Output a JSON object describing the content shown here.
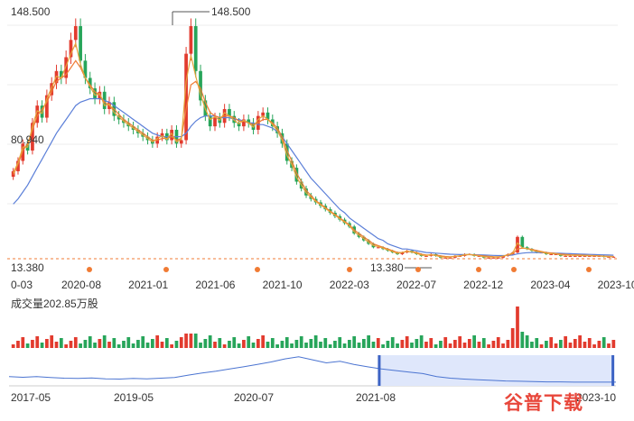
{
  "chart_data": {
    "type": "candlestick",
    "price_axis": {
      "max_label": "148.500",
      "min_label": "13.380",
      "mid_label": "80.940"
    },
    "annotations": {
      "high": "148.500",
      "low": "13.380"
    },
    "x_tick_labels": [
      "0-03",
      "2020-08",
      "2021-01",
      "2021-06",
      "2021-10",
      "2022-03",
      "2022-07",
      "2022-12",
      "2023-04",
      "2023-10"
    ],
    "volume_label": "成交量202.85万股",
    "navigator_tick_labels": [
      "2017-05",
      "2019-05",
      "2020-07",
      "2021-08",
      "2023-10"
    ],
    "price_close": [
      64,
      70,
      80,
      76,
      92,
      102,
      95,
      108,
      115,
      122,
      118,
      130,
      140,
      148,
      128,
      118,
      112,
      106,
      110,
      100,
      104,
      96,
      94,
      92,
      90,
      88,
      86,
      84,
      82,
      80,
      84,
      86,
      82,
      88,
      80,
      82,
      132,
      148,
      122,
      105,
      96,
      90,
      95,
      92,
      100,
      96,
      92,
      90,
      94,
      92,
      88,
      96,
      98,
      94,
      90,
      86,
      80,
      70,
      66,
      58,
      54,
      50,
      48,
      46,
      44,
      42,
      40,
      38,
      36,
      34,
      32,
      28,
      26,
      24,
      22,
      20,
      20,
      19,
      18,
      17,
      16,
      17,
      18,
      17,
      16,
      15,
      15,
      16,
      15,
      14,
      14,
      14,
      15,
      15,
      16,
      16,
      15,
      15,
      14,
      14,
      14,
      14,
      15,
      16,
      17,
      26,
      20,
      19,
      18,
      17,
      17,
      16,
      16,
      16,
      15,
      15,
      15,
      15,
      15,
      15,
      15,
      15,
      15,
      14.5,
      14.5,
      14.5
    ],
    "ma_short": [
      62,
      68,
      76,
      80,
      88,
      96,
      100,
      104,
      110,
      116,
      118,
      120,
      124,
      128,
      124,
      118,
      114,
      110,
      108,
      104,
      102,
      100,
      97,
      94,
      92,
      90,
      88,
      86,
      84,
      82,
      82,
      83,
      83,
      84,
      82,
      83,
      100,
      114,
      116,
      112,
      104,
      98,
      96,
      95,
      96,
      96,
      95,
      93,
      93,
      92,
      91,
      92,
      94,
      94,
      92,
      89,
      84,
      76,
      70,
      63,
      58,
      53,
      50,
      47,
      45,
      43,
      41,
      39,
      37,
      35,
      33,
      30,
      28,
      26,
      24,
      22,
      21,
      20,
      19,
      18,
      17,
      17,
      17.5,
      17.5,
      17,
      16,
      15.5,
      15.5,
      15.5,
      15,
      14.7,
      14.5,
      14.8,
      15,
      15.5,
      15.8,
      15.6,
      15.3,
      15,
      14.8,
      14.6,
      14.5,
      14.8,
      15.4,
      16.3,
      19,
      19.5,
      19.3,
      18.8,
      18.2,
      17.6,
      17,
      16.7,
      16.4,
      16.1,
      15.9,
      15.7,
      15.6,
      15.5,
      15.4,
      15.3,
      15.2,
      15.1,
      14.9,
      14.8,
      14.7
    ],
    "ma_long": [
      45,
      48,
      52,
      56,
      61,
      66,
      71,
      76,
      81,
      86,
      90,
      94,
      98,
      102,
      104,
      105,
      106,
      106,
      106,
      105,
      104,
      102,
      100,
      98,
      96,
      94,
      92,
      90,
      88,
      86,
      85,
      84,
      84,
      84,
      84,
      84,
      86,
      90,
      93,
      95,
      96,
      96,
      96,
      95,
      95,
      95,
      94,
      94,
      93,
      92,
      92,
      91,
      91,
      90,
      89,
      87,
      84,
      80,
      76,
      72,
      68,
      64,
      60,
      57,
      54,
      51,
      48,
      45,
      42,
      40,
      37,
      35,
      33,
      31,
      29,
      27,
      25,
      24,
      22,
      21,
      20,
      19,
      19,
      18.5,
      18,
      17.5,
      17,
      16.8,
      16.6,
      16.4,
      16.2,
      16,
      15.9,
      15.8,
      15.8,
      15.8,
      15.7,
      15.6,
      15.5,
      15.4,
      15.3,
      15.2,
      15.2,
      15.3,
      15.5,
      16.2,
      16.6,
      16.9,
      17,
      17,
      16.9,
      16.8,
      16.7,
      16.6,
      16.5,
      16.4,
      16.3,
      16.2,
      16.1,
      16,
      15.9,
      15.8,
      15.7,
      15.6,
      15.5,
      15.4
    ],
    "navigator_line": [
      0.3,
      0.28,
      0.3,
      0.27,
      0.25,
      0.24,
      0.26,
      0.23,
      0.22,
      0.24,
      0.23,
      0.25,
      0.27,
      0.35,
      0.42,
      0.48,
      0.55,
      0.62,
      0.7,
      0.78,
      0.88,
      0.95,
      0.85,
      0.75,
      0.8,
      0.7,
      0.62,
      0.55,
      0.5,
      0.45,
      0.4,
      0.3,
      0.25,
      0.22,
      0.2,
      0.18,
      0.16,
      0.15,
      0.14,
      0.13,
      0.13,
      0.12,
      0.12,
      0.12,
      0.12
    ],
    "navigator_selection": [
      0.61,
      0.995
    ],
    "colors": {
      "up": "#e23b2e",
      "down": "#27a55a",
      "ma5": "#e5a43a",
      "ma10": "#f07b34",
      "ma20": "#5b7fd8",
      "grid": "#eeeeee",
      "nav_line": "#4b74d1",
      "nav_fill": "#dfe7fb",
      "nav_handle": "#3c63c4",
      "dot": "#f07b34"
    }
  },
  "watermark_text": "谷普下载"
}
